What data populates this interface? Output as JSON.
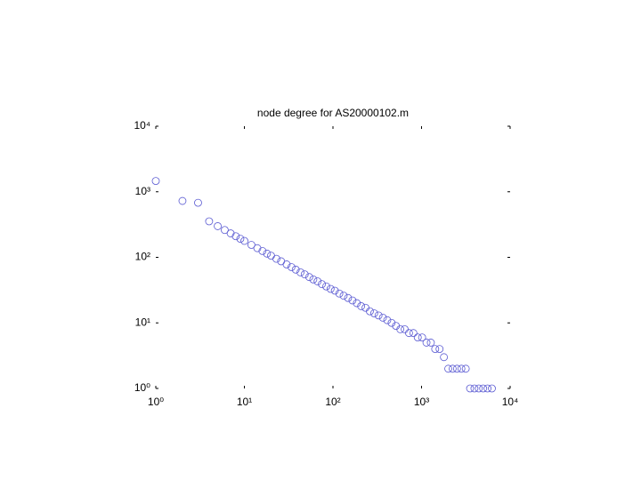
{
  "chart_data": {
    "type": "scatter",
    "title": "node degree for AS20000102.m",
    "log_x": true,
    "log_y": true,
    "xlim": [
      1,
      10000
    ],
    "ylim": [
      1,
      10000
    ],
    "xticks": [
      {
        "value": 1,
        "label": "10⁰"
      },
      {
        "value": 10,
        "label": "10¹"
      },
      {
        "value": 100,
        "label": "10²"
      },
      {
        "value": 1000,
        "label": "10³"
      },
      {
        "value": 10000,
        "label": "10⁴"
      }
    ],
    "yticks": [
      {
        "value": 1,
        "label": "10⁰"
      },
      {
        "value": 10,
        "label": "10¹"
      },
      {
        "value": 100,
        "label": "10²"
      },
      {
        "value": 1000,
        "label": "10³"
      },
      {
        "value": 10000,
        "label": "10⁴"
      }
    ],
    "grid": false,
    "marker": "circle-open",
    "color": "#5a5ad2",
    "x": [
      1,
      2,
      3,
      4,
      5,
      6,
      7,
      8,
      9,
      10,
      12,
      14,
      16,
      18,
      20,
      23,
      26,
      30,
      34,
      38,
      43,
      48,
      54,
      60,
      67,
      75,
      84,
      94,
      105,
      118,
      132,
      148,
      166,
      186,
      208,
      233,
      261,
      292,
      327,
      366,
      410,
      459,
      514,
      576,
      645,
      722,
      809,
      906,
      1015,
      1137,
      1273,
      1426,
      1597,
      1789,
      2004,
      2245,
      2514,
      2816,
      3154,
      3532,
      3956,
      4431,
      4963,
      5558,
      6225
    ],
    "y": [
      1460,
      725,
      680,
      354,
      299,
      261,
      232,
      210,
      192,
      178,
      155,
      138,
      125,
      114,
      106,
      95,
      87,
      78,
      71,
      65,
      59,
      55,
      50,
      46,
      43,
      39,
      36,
      33,
      31,
      28,
      26,
      24,
      22,
      20,
      18,
      17,
      15,
      14,
      13,
      12,
      11,
      10,
      9,
      8,
      8,
      7,
      7,
      6,
      6,
      5,
      5,
      4,
      4,
      3,
      2,
      2,
      2,
      2,
      2,
      1,
      1,
      1,
      1,
      1,
      1
    ]
  }
}
